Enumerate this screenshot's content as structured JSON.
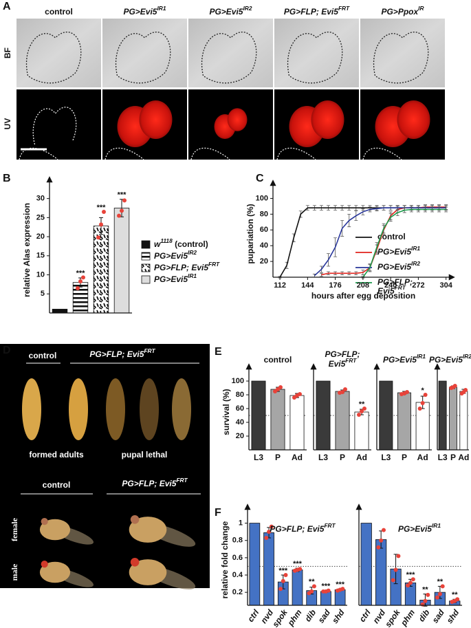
{
  "panels": [
    "A",
    "B",
    "C",
    "D",
    "E",
    "F"
  ],
  "panel_a": {
    "columns": [
      "control",
      {
        "text": "PG>Evi5",
        "sup": "IR1"
      },
      {
        "text": "PG>Evi5",
        "sup": "IR2"
      },
      {
        "text": "PG>FLP; Evi5",
        "sup": "FRT"
      },
      {
        "text": "PG>Ppox",
        "sup": "IR"
      }
    ],
    "rows": [
      "BF",
      "UV"
    ]
  },
  "panel_d": {
    "top_groups": [
      "control",
      {
        "text": "PG>FLP; Evi5",
        "sup": "FRT"
      }
    ],
    "top_captions": [
      "formed adults",
      "pupal lethal"
    ],
    "bottom_groups": [
      "control",
      {
        "text": "PG>FLP; Evi5",
        "sup": "FRT"
      }
    ],
    "rows": [
      "female",
      "male"
    ]
  },
  "chart_data": [
    {
      "type": "bar",
      "ylabel": "relative Alas expression",
      "categories": [
        {
          "text": "w",
          "sup": "1118",
          "tail": " (control)"
        },
        {
          "text": "PG>Evi5",
          "sup": "IR2"
        },
        {
          "text": "PG>FLP; Evi5",
          "sup": "FRT"
        },
        {
          "text": "PG>Evi5",
          "sup": "IR1"
        }
      ],
      "values": [
        1,
        8,
        22.8,
        27.5
      ],
      "errors": [
        null,
        1.2,
        2.2,
        2.3
      ],
      "points": [
        null,
        [
          6.5,
          8.3,
          9.3
        ],
        [
          19.8,
          23.2,
          26.5
        ],
        [
          25.5,
          26.8,
          29.5
        ]
      ],
      "annotations": [
        null,
        "***",
        "***",
        "***"
      ],
      "patterns": [
        "solid",
        "horizontal-stripes",
        "dashes",
        "solid"
      ],
      "colors": [
        "#111111",
        "#ffffff",
        "#ffffff",
        "#dddddd"
      ],
      "ylim": [
        0,
        33
      ],
      "yticks": [
        5,
        10,
        15,
        20,
        25,
        30
      ],
      "legend": "right"
    },
    {
      "type": "line",
      "xlabel": "hours after egg deposition",
      "ylabel": "pupariation (%)",
      "x": [
        112,
        120,
        128,
        136,
        144,
        152,
        160,
        168,
        176,
        184,
        192,
        200,
        208,
        216,
        224,
        232,
        240,
        248,
        256,
        264,
        272,
        280,
        288,
        296,
        304
      ],
      "series": [
        {
          "name": "control",
          "color": "#111111",
          "values": [
            0,
            15,
            50,
            80,
            88,
            88,
            88,
            88,
            88,
            88,
            88,
            88,
            88,
            88,
            88,
            88,
            88,
            88,
            88,
            88,
            88,
            88,
            88,
            88,
            88
          ],
          "errors": [
            1,
            4,
            5,
            4,
            3,
            3,
            3,
            3,
            3,
            3,
            3,
            3,
            3,
            3,
            3,
            3,
            3,
            3,
            3,
            3,
            3,
            3,
            3,
            3,
            3
          ]
        },
        {
          "name": {
            "text": "PG>Evi5",
            "sup": "IR1"
          },
          "color": "#e0221b",
          "values": [
            null,
            null,
            null,
            null,
            null,
            null,
            3,
            5,
            5,
            5,
            5,
            5,
            6,
            12,
            35,
            60,
            78,
            86,
            88,
            88,
            88,
            89,
            89,
            89,
            89
          ],
          "errors": [
            null,
            null,
            null,
            null,
            null,
            null,
            2,
            2,
            2,
            2,
            2,
            2,
            3,
            5,
            6,
            6,
            5,
            4,
            3,
            3,
            3,
            3,
            3,
            3,
            3
          ]
        },
        {
          "name": {
            "text": "PG>Evi5",
            "sup": "IR2"
          },
          "color": "#27359a",
          "values": [
            null,
            null,
            null,
            null,
            null,
            2,
            10,
            22,
            38,
            62,
            72,
            78,
            83,
            86,
            87,
            88,
            88,
            88,
            88,
            88,
            88,
            88,
            88,
            88,
            88
          ],
          "errors": [
            null,
            null,
            null,
            null,
            null,
            2,
            4,
            8,
            12,
            10,
            8,
            6,
            4,
            3,
            3,
            3,
            3,
            3,
            3,
            3,
            3,
            3,
            3,
            3,
            3
          ]
        },
        {
          "name": [
            "PG>FLP;",
            {
              "text": "Evi5",
              "sup": "FRT"
            }
          ],
          "color": "#1a9a4a",
          "values": [
            null,
            null,
            null,
            null,
            null,
            null,
            null,
            null,
            null,
            null,
            null,
            null,
            0,
            12,
            38,
            62,
            76,
            82,
            85,
            86,
            86,
            86,
            86,
            86,
            86
          ],
          "errors": [
            null,
            null,
            null,
            null,
            null,
            null,
            null,
            null,
            null,
            null,
            null,
            null,
            1,
            4,
            6,
            6,
            5,
            4,
            3,
            3,
            3,
            3,
            3,
            3,
            3
          ]
        }
      ],
      "xlim": [
        104,
        313
      ],
      "xticks": [
        112,
        144,
        176,
        208,
        240,
        272,
        304
      ],
      "ylim": [
        0,
        110
      ],
      "yticks": [
        20,
        40,
        60,
        80,
        100
      ],
      "legend": "right"
    },
    {
      "type": "bar",
      "title": "control",
      "ylabel": "survival (%)",
      "categories": [
        "L3",
        "P",
        "Ad"
      ],
      "values": [
        100,
        88,
        79
      ],
      "errors": [
        null,
        3,
        3
      ],
      "points": [
        null,
        [
          85,
          88,
          91
        ],
        [
          76,
          79,
          81
        ]
      ],
      "colors": [
        "#3a3a3a",
        "#a6a6a6",
        "#ffffff"
      ],
      "ylim": [
        0,
        110
      ],
      "yticks": [
        20,
        40,
        60,
        80,
        100
      ],
      "hline": 50
    },
    {
      "type": "bar",
      "title": [
        "PG>FLP;",
        {
          "text": "Evi5",
          "sup": "FRT"
        }
      ],
      "categories": [
        "L3",
        "P",
        "Ad"
      ],
      "values": [
        100,
        85,
        55
      ],
      "errors": [
        null,
        2,
        4
      ],
      "points": [
        null,
        [
          83,
          84,
          88
        ],
        [
          51,
          56,
          60
        ]
      ],
      "annotations": [
        null,
        null,
        "**"
      ],
      "colors": [
        "#3a3a3a",
        "#a6a6a6",
        "#ffffff"
      ],
      "ylim": [
        0,
        110
      ],
      "hline": 50
    },
    {
      "type": "bar",
      "title": {
        "text": "PG>Evi5",
        "sup": "IR1"
      },
      "categories": [
        "L3",
        "P",
        "Ad"
      ],
      "values": [
        100,
        83,
        69
      ],
      "errors": [
        null,
        2,
        9
      ],
      "points": [
        null,
        [
          81,
          82,
          84
        ],
        [
          60,
          68,
          80
        ]
      ],
      "annotations": [
        null,
        null,
        "*"
      ],
      "colors": [
        "#3a3a3a",
        "#a6a6a6",
        "#ffffff"
      ],
      "ylim": [
        0,
        110
      ],
      "hline": 50
    },
    {
      "type": "bar",
      "title": {
        "text": "PG>Evi5",
        "sup": "IR2"
      },
      "categories": [
        "L3",
        "P",
        "Ad"
      ],
      "values": [
        100,
        91,
        85
      ],
      "errors": [
        null,
        2,
        3
      ],
      "points": [
        null,
        [
          90,
          91,
          93
        ],
        [
          82,
          84,
          87
        ]
      ],
      "colors": [
        "#3a3a3a",
        "#a6a6a6",
        "#ffffff"
      ],
      "ylim": [
        0,
        110
      ],
      "hline": 50
    },
    {
      "type": "bar",
      "title": {
        "text": "PG>FLP; Evi5",
        "sup": "FRT"
      },
      "ylabel": "relative fold change",
      "categories": [
        "ctrl",
        "nvd",
        "spok",
        "phm",
        "dib",
        "sad",
        "shd"
      ],
      "values": [
        1,
        0.89,
        0.32,
        0.46,
        0.22,
        0.21,
        0.23
      ],
      "errors": [
        null,
        0.06,
        0.08,
        0.02,
        0.04,
        0.01,
        0.01
      ],
      "points": [
        null,
        [
          0.83,
          0.9,
          0.96
        ],
        [
          0.24,
          0.33,
          0.4
        ],
        [
          0.45,
          0.46,
          0.47
        ],
        [
          0.19,
          0.21,
          0.27
        ],
        [
          0.21,
          0.21,
          0.22
        ],
        [
          0.22,
          0.23,
          0.24
        ]
      ],
      "annotations": [
        null,
        null,
        "***",
        "***",
        "**",
        "***",
        "***"
      ],
      "color": "#4472c4",
      "ylim": [
        0.05,
        1.1
      ],
      "yticks": [
        0.2,
        0.4,
        0.6,
        0.8,
        1
      ],
      "hline": 0.5
    },
    {
      "type": "bar",
      "title": {
        "text": "PG>Evi5",
        "sup": "IR1"
      },
      "categories": [
        "ctrl",
        "nvd",
        "spok",
        "phm",
        "dib",
        "sad",
        "shd"
      ],
      "values": [
        1,
        0.81,
        0.47,
        0.31,
        0.11,
        0.2,
        0.1
      ],
      "errors": [
        null,
        0.1,
        0.17,
        0.04,
        0.07,
        0.07,
        0.02
      ],
      "points": [
        null,
        [
          0.72,
          0.8,
          0.92
        ],
        [
          0.34,
          0.46,
          0.62
        ],
        [
          0.28,
          0.31,
          0.35
        ],
        [
          0.06,
          0.1,
          0.17
        ],
        [
          0.14,
          0.18,
          0.27
        ],
        [
          0.09,
          0.1,
          0.12
        ]
      ],
      "annotations": [
        null,
        null,
        null,
        "***",
        "**",
        "**",
        "**"
      ],
      "color": "#4472c4",
      "ylim": [
        0.05,
        1.1
      ],
      "hline": 0.5
    }
  ]
}
